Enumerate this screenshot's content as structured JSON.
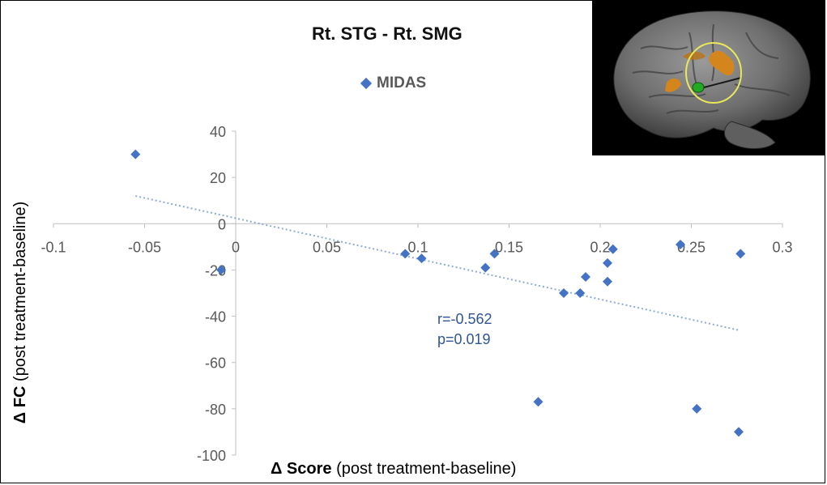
{
  "chart_data": {
    "type": "scatter",
    "title": "Rt. STG - Rt. SMG",
    "legend": "MIDAS",
    "xlabel_bold": "Δ Score",
    "xlabel_rest": "(post  treatment-baseline)",
    "ylabel_bold": "Δ FC",
    "ylabel_rest": "(post  treatment-baseline)",
    "xlim": [
      -0.1,
      0.3
    ],
    "ylim": [
      -100,
      40
    ],
    "x_ticks": [
      "-0.1",
      "-0.05",
      "0",
      "0.05",
      "0.1",
      "0.15",
      "0.2",
      "0.25",
      "0.3"
    ],
    "y_ticks": [
      "40",
      "20",
      "0",
      "-20",
      "-40",
      "-60",
      "-80",
      "-100"
    ],
    "x_tick_values": [
      -0.1,
      -0.05,
      0,
      0.05,
      0.1,
      0.15,
      0.2,
      0.25,
      0.3
    ],
    "y_tick_values": [
      40,
      20,
      0,
      -20,
      -40,
      -60,
      -80,
      -100
    ],
    "points": [
      {
        "x": -0.055,
        "y": 30
      },
      {
        "x": -0.008,
        "y": -20
      },
      {
        "x": 0.093,
        "y": -13
      },
      {
        "x": 0.102,
        "y": -15
      },
      {
        "x": 0.137,
        "y": -19
      },
      {
        "x": 0.142,
        "y": -13
      },
      {
        "x": 0.166,
        "y": -77
      },
      {
        "x": 0.18,
        "y": -30
      },
      {
        "x": 0.189,
        "y": -30
      },
      {
        "x": 0.192,
        "y": -23
      },
      {
        "x": 0.204,
        "y": -17
      },
      {
        "x": 0.204,
        "y": -25
      },
      {
        "x": 0.207,
        "y": -11
      },
      {
        "x": 0.244,
        "y": -9
      },
      {
        "x": 0.253,
        "y": -80
      },
      {
        "x": 0.276,
        "y": -90
      },
      {
        "x": 0.277,
        "y": -13
      }
    ],
    "trendline": {
      "x": [
        -0.055,
        0.276
      ],
      "y": [
        12,
        -46
      ]
    },
    "annotation": {
      "r": "r=-0.562",
      "p": "p=0.019"
    },
    "colors": {
      "marker": "#4472C4",
      "trend": "#8EAADB",
      "annotation": "#2F5597"
    }
  }
}
